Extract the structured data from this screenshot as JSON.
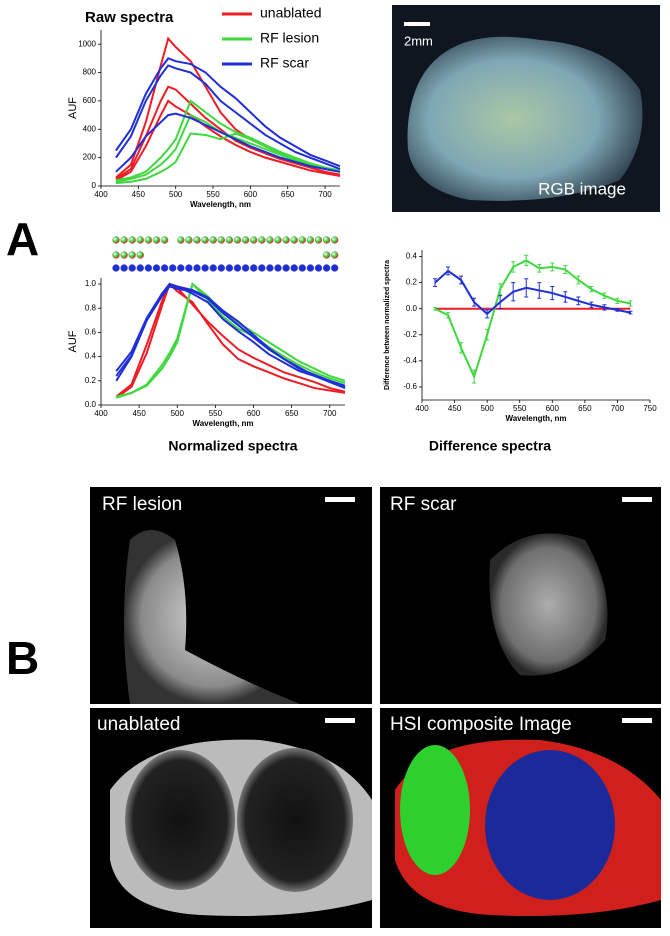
{
  "figure": {
    "panel_a": "A",
    "panel_b": "B",
    "rgb_scale": "2mm",
    "rgb_label": "RGB image",
    "images": [
      "RF lesion",
      "RF scar",
      "unablated",
      "HSI composite  Image"
    ]
  },
  "chart_data": [
    {
      "type": "line",
      "title": "Raw spectra",
      "xlabel": "Wavelength, nm",
      "ylabel": "AUF",
      "legend": "upper right",
      "x": [
        420,
        440,
        460,
        480,
        490,
        500,
        520,
        540,
        560,
        580,
        600,
        620,
        640,
        660,
        680,
        700,
        720
      ],
      "xlim": [
        400,
        720
      ],
      "xticks": [
        400,
        450,
        500,
        550,
        600,
        650,
        700
      ],
      "ylim": [
        0,
        1100
      ],
      "yticks": [
        0,
        200,
        400,
        600,
        800,
        1000
      ],
      "series": [
        {
          "name": "unablated",
          "color": "#ee1c24",
          "curves": [
            [
              60,
              150,
              450,
              850,
              1040,
              980,
              880,
              700,
              520,
              400,
              330,
              280,
              230,
              190,
              150,
              120,
              100
            ],
            [
              50,
              120,
              350,
              600,
              700,
              680,
              580,
              480,
              400,
              320,
              270,
              230,
              190,
              160,
              130,
              100,
              80
            ],
            [
              40,
              100,
              280,
              500,
              600,
              560,
              500,
              420,
              350,
              290,
              240,
              200,
              170,
              140,
              110,
              90,
              70
            ]
          ]
        },
        {
          "name": "RF lesion",
          "color": "#3fd83f",
          "curves": [
            [
              40,
              60,
              100,
              200,
              260,
              330,
              600,
              520,
              440,
              380,
              340,
              290,
              240,
              200,
              160,
              130,
              110
            ],
            [
              30,
              50,
              80,
              150,
              200,
              260,
              500,
              450,
              380,
              340,
              300,
              260,
              220,
              180,
              150,
              120,
              100
            ],
            [
              20,
              30,
              50,
              100,
              130,
              170,
              370,
              360,
              330,
              370,
              330,
              280,
              230,
              190,
              160,
              130,
              100
            ]
          ]
        },
        {
          "name": "RF scar",
          "color": "#1f2fd8",
          "curves": [
            [
              250,
              400,
              650,
              830,
              900,
              880,
              860,
              800,
              700,
              620,
              520,
              420,
              340,
              280,
              220,
              180,
              140
            ],
            [
              200,
              350,
              600,
              780,
              850,
              830,
              800,
              720,
              600,
              520,
              440,
              360,
              300,
              240,
              200,
              160,
              120
            ],
            [
              100,
              200,
              350,
              450,
              500,
              510,
              480,
              430,
              380,
              330,
              280,
              240,
              200,
              170,
              140,
              120,
              100
            ]
          ]
        }
      ]
    },
    {
      "type": "line",
      "title": "Normalized spectra",
      "xlabel": "Wavelength, nm",
      "ylabel": "AUF",
      "x": [
        420,
        440,
        460,
        480,
        490,
        500,
        520,
        540,
        560,
        580,
        600,
        620,
        640,
        660,
        680,
        700,
        720
      ],
      "xlim": [
        400,
        720
      ],
      "xticks": [
        400,
        450,
        500,
        550,
        600,
        650,
        700
      ],
      "ylim": [
        0,
        1.05
      ],
      "yticks": [
        {
          "value": 0,
          "label": "0.0"
        },
        {
          "value": 0.2,
          "label": "0.2"
        },
        {
          "value": 0.4,
          "label": "0.4"
        },
        {
          "value": 0.6,
          "label": "0.6"
        },
        {
          "value": 0.8,
          "label": "0.8"
        },
        {
          "value": 1,
          "label": "1.0"
        }
      ],
      "series": [
        {
          "color": "#ee1c24",
          "curves": [
            [
              0.06,
              0.15,
              0.43,
              0.82,
              1.0,
              0.94,
              0.85,
              0.67,
              0.5,
              0.38,
              0.32,
              0.27,
              0.22,
              0.18,
              0.14,
              0.12,
              0.1
            ],
            [
              0.07,
              0.17,
              0.5,
              0.86,
              1.0,
              0.97,
              0.83,
              0.69,
              0.57,
              0.46,
              0.39,
              0.33,
              0.27,
              0.23,
              0.19,
              0.14,
              0.11
            ]
          ]
        },
        {
          "color": "#3fd83f",
          "curves": [
            [
              0.07,
              0.1,
              0.17,
              0.33,
              0.43,
              0.55,
              1.0,
              0.87,
              0.73,
              0.63,
              0.57,
              0.48,
              0.4,
              0.33,
              0.27,
              0.22,
              0.18
            ],
            [
              0.06,
              0.1,
              0.16,
              0.3,
              0.4,
              0.52,
              1.0,
              0.9,
              0.76,
              0.68,
              0.6,
              0.52,
              0.44,
              0.36,
              0.3,
              0.24,
              0.2
            ]
          ]
        },
        {
          "color": "#1f2fd8",
          "curves": [
            [
              0.28,
              0.44,
              0.72,
              0.92,
              1.0,
              0.98,
              0.95,
              0.89,
              0.78,
              0.69,
              0.58,
              0.47,
              0.38,
              0.31,
              0.24,
              0.2,
              0.16
            ],
            [
              0.24,
              0.41,
              0.7,
              0.92,
              1.0,
              0.98,
              0.92,
              0.85,
              0.71,
              0.61,
              0.52,
              0.42,
              0.35,
              0.28,
              0.24,
              0.19,
              0.14
            ],
            [
              0.2,
              0.4,
              0.7,
              0.9,
              0.98,
              0.96,
              0.94,
              0.88,
              0.76,
              0.66,
              0.56,
              0.46,
              0.38,
              0.3,
              0.25,
              0.2,
              0.15
            ]
          ]
        }
      ]
    },
    {
      "type": "errorline",
      "title": "Difference spectra",
      "xlabel": "Wavelength, nm",
      "ylabel": "Difference between normalized spectra",
      "x": [
        420,
        440,
        460,
        480,
        500,
        520,
        540,
        560,
        580,
        600,
        620,
        640,
        660,
        680,
        700,
        720
      ],
      "xlim": [
        400,
        750
      ],
      "xticks": [
        400,
        450,
        500,
        550,
        600,
        650,
        700,
        750
      ],
      "ylim": [
        -0.7,
        0.45
      ],
      "yticks": [
        {
          "value": -0.6,
          "label": "-0.6"
        },
        {
          "value": -0.4,
          "label": "-0.4"
        },
        {
          "value": -0.2,
          "label": "-0.2"
        },
        {
          "value": 0,
          "label": "0.0"
        },
        {
          "value": 0.2,
          "label": "0.2"
        },
        {
          "value": 0.4,
          "label": "0.4"
        }
      ],
      "series": [
        {
          "color": "#ee1c24",
          "values": [
            0,
            0,
            0,
            0,
            0,
            0,
            0,
            0,
            0,
            0,
            0,
            0,
            0,
            0,
            0,
            0
          ]
        },
        {
          "color": "#3fd83f",
          "values": [
            0,
            -0.05,
            -0.3,
            -0.52,
            -0.2,
            0.15,
            0.32,
            0.37,
            0.31,
            0.32,
            0.3,
            0.22,
            0.15,
            0.1,
            0.06,
            0.04
          ],
          "errors": [
            0.01,
            0.02,
            0.04,
            0.05,
            0.04,
            0.04,
            0.04,
            0.04,
            0.03,
            0.03,
            0.03,
            0.03,
            0.02,
            0.02,
            0.02,
            0.02
          ]
        },
        {
          "color": "#1f2fd8",
          "values": [
            0.2,
            0.29,
            0.22,
            0.05,
            -0.04,
            0.05,
            0.13,
            0.16,
            0.14,
            0.12,
            0.09,
            0.06,
            0.03,
            0.01,
            -0.01,
            -0.03
          ],
          "errors": [
            0.03,
            0.03,
            0.03,
            0.03,
            0.03,
            0.05,
            0.07,
            0.07,
            0.06,
            0.05,
            0.04,
            0.03,
            0.02,
            0.02,
            0.01,
            0.01
          ]
        }
      ]
    }
  ]
}
